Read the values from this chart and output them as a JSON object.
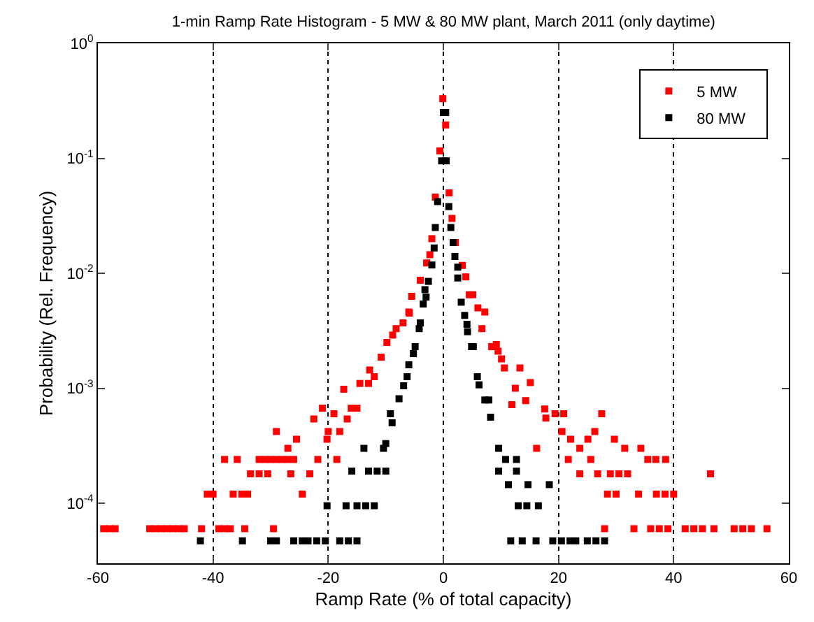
{
  "chart_data": {
    "type": "scatter",
    "title": "1-min Ramp Rate Histogram - 5 MW & 80 MW plant, March 2011 (only daytime)",
    "xlabel": "Ramp Rate (% of total capacity)",
    "ylabel": "Probability (Rel. Frequency)",
    "log": "y",
    "grid": "x",
    "legend": "top right",
    "marker": "square",
    "xlim": [
      -60,
      60
    ],
    "xticks": [
      -60,
      -40,
      -20,
      0,
      20,
      40,
      60
    ],
    "ylim": [
      3e-05,
      1
    ],
    "yticks": [
      {
        "value": 0.0001,
        "label": "10$^{-4}$"
      },
      {
        "value": 0.001,
        "label": "10$^{-3}$"
      },
      {
        "value": 0.01,
        "label": "10$^{-2}$"
      },
      {
        "value": 0.1,
        "label": "10$^{-1}$"
      },
      {
        "value": 1,
        "label": "10$^{0}$"
      }
    ],
    "series": [
      {
        "name": "5 MW",
        "color": "#ff0000",
        "x": [
          -59,
          -58,
          -57,
          -51,
          -50,
          -49,
          -48,
          -47,
          -46,
          -45,
          -42,
          -39,
          -38,
          -37,
          -34.5,
          -29.5,
          -41,
          -40,
          -36.5,
          -35,
          -34,
          -24.5,
          -33.5,
          -32,
          -30.5,
          -26.5,
          -23.2,
          -38,
          -35.8,
          -32,
          -31,
          -30,
          -29,
          -28,
          -27,
          -26,
          -21.8,
          -18.5,
          -27,
          -25.5,
          -20.2,
          -29,
          -20,
          -18,
          -22.5,
          -16.7,
          -19,
          -21,
          -16,
          -15,
          -17.3,
          -14.5,
          -13,
          -12,
          -12.8,
          -10.8,
          -9.8,
          -8.8,
          -8.2,
          -7,
          -6,
          -5.9,
          -5.5,
          -4,
          -2.9,
          -2.35,
          -2,
          -1.4,
          -0.6,
          -0.1,
          0.4,
          1.0,
          1.5,
          2.1,
          3.3,
          3.9,
          4.5,
          5.1,
          6.0,
          7.2,
          6.7,
          8.4,
          9.2,
          9.5,
          10.1,
          10.6,
          13.3,
          12.5,
          15.1,
          14.3,
          11.9,
          17.6,
          17.8,
          19.4,
          20.9,
          27.5,
          20.6,
          22.1,
          25.1,
          26.3,
          29.7,
          16.2,
          23.7,
          31.5,
          34.3,
          21.7,
          25.6,
          35.5,
          36.9,
          38.6,
          23.7,
          26.8,
          29,
          30.5,
          32,
          46.4,
          28.5,
          30,
          33.9,
          37,
          38.5,
          40,
          28,
          33.1,
          36,
          37.5,
          39,
          42,
          43.5,
          45,
          47,
          50.5,
          52,
          53.5,
          56.2
        ],
        "values": [
          6e-05,
          6e-05,
          6e-05,
          6e-05,
          6e-05,
          6e-05,
          6e-05,
          6e-05,
          6e-05,
          6e-05,
          6e-05,
          6e-05,
          6e-05,
          6e-05,
          6e-05,
          6e-05,
          0.00012,
          0.00012,
          0.00012,
          0.00012,
          0.00012,
          0.00012,
          0.00018,
          0.00018,
          0.00018,
          0.00018,
          0.00018,
          0.00024,
          0.00024,
          0.00024,
          0.00024,
          0.00024,
          0.00024,
          0.00024,
          0.00024,
          0.00024,
          0.00024,
          0.00024,
          0.0003,
          0.00036,
          0.00036,
          0.00042,
          0.00042,
          0.00042,
          0.00054,
          0.00054,
          0.0006,
          0.00067,
          0.00067,
          0.00067,
          0.00098,
          0.0011,
          0.0011,
          0.00126,
          0.00144,
          0.00186,
          0.0025,
          0.0029,
          0.0033,
          0.0037,
          0.0046,
          0.0045,
          0.0063,
          0.0087,
          0.0123,
          0.0145,
          0.02,
          0.046,
          0.116,
          0.33,
          0.195,
          0.05,
          0.03,
          0.0185,
          0.0117,
          0.0093,
          0.0065,
          0.0065,
          0.005,
          0.0046,
          0.0033,
          0.0023,
          0.0024,
          0.0021,
          0.0018,
          0.0015,
          0.0015,
          0.001,
          0.00112,
          0.00078,
          0.00072,
          0.00066,
          0.00055,
          0.0006,
          0.0006,
          0.0006,
          0.00042,
          0.00036,
          0.00036,
          0.00042,
          0.00036,
          0.0003,
          0.0003,
          0.0003,
          0.0003,
          0.00024,
          0.00024,
          0.00024,
          0.00024,
          0.00024,
          0.00018,
          0.00018,
          0.00018,
          0.00018,
          0.00018,
          0.00018,
          0.00012,
          0.00012,
          0.00012,
          0.00012,
          0.00012,
          0.00012,
          6e-05,
          6e-05,
          6e-05,
          6e-05,
          6e-05,
          6e-05,
          6e-05,
          6e-05,
          6e-05,
          6e-05,
          6e-05,
          6e-05,
          6e-05
        ]
      },
      {
        "name": "80 MW",
        "color": "#000000",
        "x": [
          -42.2,
          -34.9,
          -30,
          -29,
          -26,
          -24.5,
          -23.5,
          -22,
          -20.5,
          -18,
          -16.5,
          -15,
          -20.2,
          -16.9,
          -15,
          -13.5,
          -12,
          -15.9,
          -13,
          -11.5,
          -10,
          -13.8,
          -10.4,
          -10,
          -8.9,
          -9.2,
          -7.7,
          -6.9,
          -6.3,
          -6.0,
          -5.2,
          -4.9,
          -4.2,
          -4.0,
          -3.5,
          -3.2,
          -3.0,
          -2.6,
          -2.0,
          -1.6,
          -1.4,
          -1,
          -0.3,
          0,
          0.4,
          0.5,
          0.95,
          1.3,
          1.7,
          2.0,
          2.5,
          2.5,
          3.1,
          3.7,
          4.1,
          4.2,
          4.9,
          5.2,
          5.9,
          6.2,
          7.2,
          7.9,
          8.2,
          9.6,
          10.8,
          12.7,
          9.6,
          12.7,
          11.3,
          14.7,
          18.4,
          13,
          14.5,
          16.5,
          11.7,
          13.7,
          16.1,
          19,
          20.5,
          22,
          23,
          25,
          26.5,
          28
        ],
        "values": [
          4.7e-05,
          4.7e-05,
          4.7e-05,
          4.7e-05,
          4.7e-05,
          4.7e-05,
          4.7e-05,
          4.7e-05,
          4.7e-05,
          4.7e-05,
          4.7e-05,
          4.7e-05,
          9.5e-05,
          9.5e-05,
          9.5e-05,
          9.5e-05,
          9.5e-05,
          0.00019,
          0.00019,
          0.00019,
          0.00019,
          0.0003,
          0.0003,
          0.00033,
          0.0005,
          0.0006,
          0.00081,
          0.00105,
          0.00126,
          0.0016,
          0.002,
          0.0023,
          0.0033,
          0.0037,
          0.0054,
          0.0072,
          0.0062,
          0.0085,
          0.0118,
          0.0166,
          0.025,
          0.042,
          0.095,
          0.25,
          0.25,
          0.095,
          0.038,
          0.025,
          0.0185,
          0.014,
          0.0113,
          0.0091,
          0.0056,
          0.0043,
          0.0036,
          0.0031,
          0.0023,
          0.0023,
          0.00126,
          0.00107,
          0.00079,
          0.00079,
          0.00056,
          0.0003,
          0.00024,
          0.00024,
          0.00019,
          0.00019,
          0.000145,
          0.000145,
          0.000145,
          9.5e-05,
          9.5e-05,
          9.5e-05,
          4.7e-05,
          4.7e-05,
          4.7e-05,
          4.7e-05,
          4.7e-05,
          4.7e-05,
          4.7e-05,
          4.7e-05,
          4.7e-05,
          4.7e-05
        ]
      }
    ]
  }
}
